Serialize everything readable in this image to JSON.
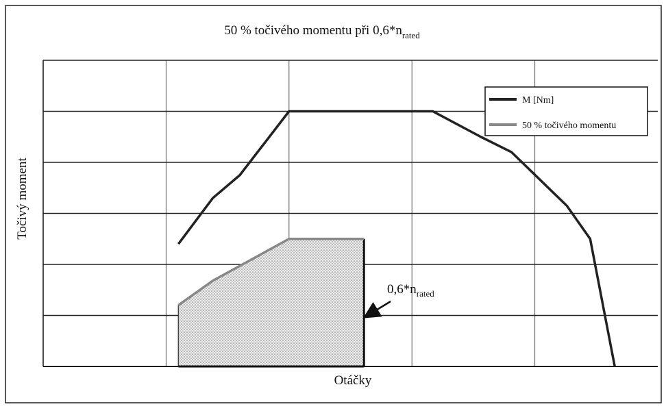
{
  "chart_data": {
    "type": "line",
    "title": {
      "text": "50 % točivého momentu při 0,6*n",
      "subscript": "rated"
    },
    "x_label": "Otáčky",
    "y_label": "Točivý moment",
    "xlim": [
      0,
      5
    ],
    "ylim": [
      0,
      6
    ],
    "xgrid": [
      1,
      2,
      3,
      4
    ],
    "ygrid": [
      1,
      2,
      3,
      4,
      5,
      6
    ],
    "grid": true,
    "legend": "upper right",
    "series": [
      {
        "name": "M [Nm]",
        "color": "#222222",
        "x": [
          1.1,
          1.38,
          1.6,
          2.0,
          3.17,
          3.56,
          3.81,
          4.26,
          4.45,
          4.65
        ],
        "values": [
          2.4,
          3.3,
          3.75,
          5.0,
          5.0,
          4.5,
          4.2,
          3.15,
          2.5,
          0
        ]
      },
      {
        "name": "50 % točivého momentu",
        "color": "#888888",
        "fill": "area",
        "x": [
          1.1,
          1.38,
          2.0,
          2.61
        ],
        "values": [
          1.2,
          1.68,
          2.5,
          2.5
        ]
      }
    ],
    "annotation": {
      "text": "0,6*n",
      "subscript": "rated"
    }
  }
}
